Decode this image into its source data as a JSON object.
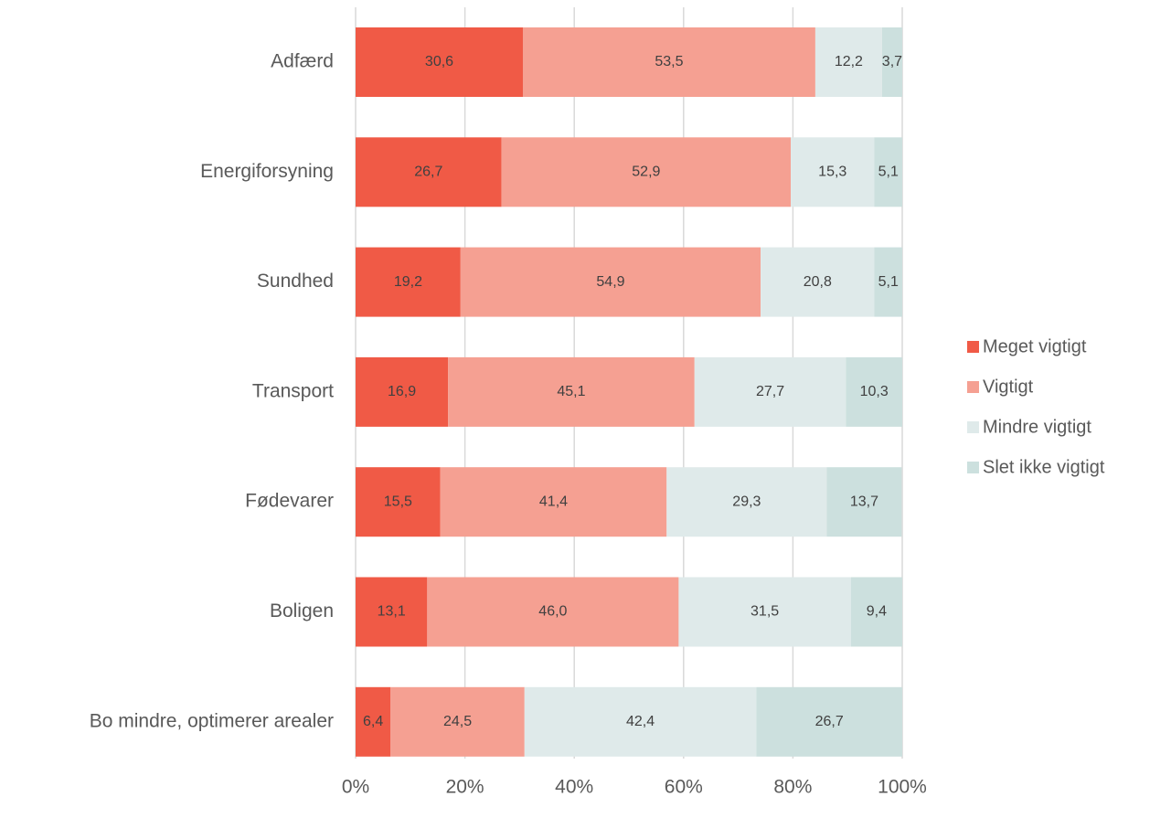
{
  "chart_data": {
    "type": "stacked-bar-horizontal",
    "categories": [
      "Adfærd",
      "Energiforsyning",
      "Sundhed",
      "Transport",
      "Fødevarer",
      "Boligen",
      "Bo mindre, optimerer arealer"
    ],
    "series": [
      {
        "name": "Meget vigtigt",
        "color": "#f05a46",
        "values": [
          30.6,
          26.7,
          19.2,
          16.9,
          15.5,
          13.1,
          6.4
        ],
        "value_labels": [
          "30,6",
          "26,7",
          "19,2",
          "16,9",
          "15,5",
          "13,1",
          "6,4"
        ]
      },
      {
        "name": "Vigtigt",
        "color": "#f5a092",
        "values": [
          53.5,
          52.9,
          54.9,
          45.1,
          41.4,
          46.0,
          24.5
        ],
        "value_labels": [
          "53,5",
          "52,9",
          "54,9",
          "45,1",
          "41,4",
          "46,0",
          "24,5"
        ]
      },
      {
        "name": "Mindre vigtigt",
        "color": "#dfeaea",
        "values": [
          12.2,
          15.3,
          20.8,
          27.7,
          29.3,
          31.5,
          42.4
        ],
        "value_labels": [
          "12,2",
          "15,3",
          "20,8",
          "27,7",
          "29,3",
          "31,5",
          "42,4"
        ]
      },
      {
        "name": "Slet ikke vigtigt",
        "color": "#cce0de",
        "values": [
          3.7,
          5.1,
          5.1,
          10.3,
          13.7,
          9.4,
          26.7
        ],
        "value_labels": [
          "3,7",
          "5,1",
          "5,1",
          "10,3",
          "13,7",
          "9,4",
          "26,7"
        ]
      }
    ],
    "xlim": [
      0,
      100
    ],
    "xticks": [
      {
        "value": 0,
        "label": "0%"
      },
      {
        "value": 20,
        "label": "20%"
      },
      {
        "value": 40,
        "label": "40%"
      },
      {
        "value": 60,
        "label": "60%"
      },
      {
        "value": 80,
        "label": "80%"
      },
      {
        "value": 100,
        "label": "100%"
      }
    ],
    "grid": true,
    "legend": "right"
  }
}
